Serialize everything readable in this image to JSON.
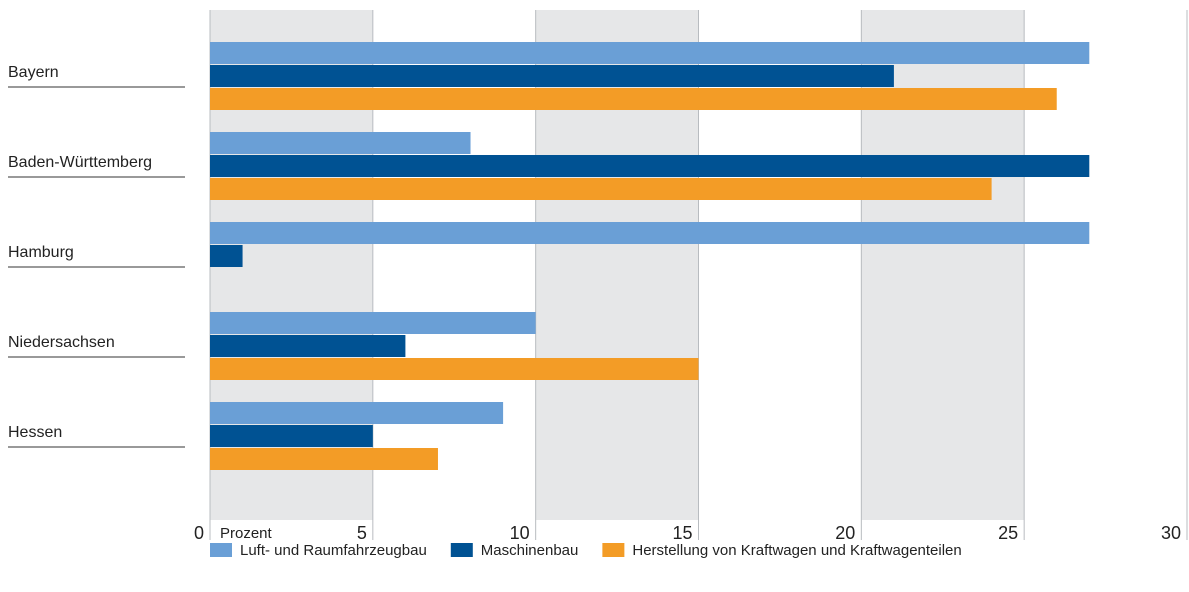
{
  "chart_data": {
    "type": "bar",
    "orientation": "horizontal",
    "categories": [
      "Bayern",
      "Baden-Württemberg",
      "Hamburg",
      "Niedersachsen",
      "Hessen"
    ],
    "series": [
      {
        "name": "Luft- und Raumfahrzeugbau",
        "color": "#6a9fd6",
        "values": [
          27,
          8,
          27,
          10,
          9
        ]
      },
      {
        "name": "Maschinenbau",
        "color": "#005293",
        "values": [
          21,
          27,
          1,
          6,
          5
        ]
      },
      {
        "name": "Herstellung von Kraftwagen und Kraftwagenteilen",
        "color": "#f39c26",
        "values": [
          26,
          24,
          null,
          15,
          7
        ]
      }
    ],
    "xlabel": "Prozent",
    "xlim": [
      0,
      30
    ],
    "xticks": [
      0,
      5,
      10,
      15,
      20,
      25,
      30
    ],
    "grid": true,
    "legend": "bottom"
  }
}
